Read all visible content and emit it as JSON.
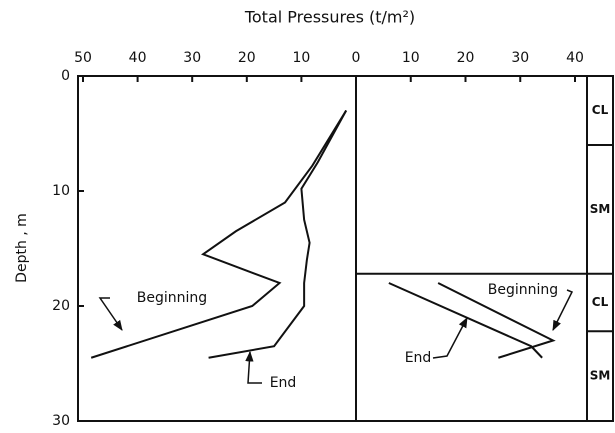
{
  "chart_data": {
    "type": "line",
    "title": "Total Pressures (t/m²)",
    "y_label": "Depth , m",
    "ylim": [
      0,
      30
    ],
    "yticks": [
      0,
      10,
      20,
      30
    ],
    "panels": [
      {
        "xlim": [
          50,
          0
        ],
        "xticks": [
          50,
          40,
          30,
          20,
          10,
          0
        ],
        "series": [
          {
            "name": "Beginning",
            "color": "#111111",
            "x": [
              1.8,
              8,
              13,
              22,
              28,
              14,
              19,
              48.5
            ],
            "values": [
              3,
              7.8,
              11,
              13.5,
              15.5,
              18,
              20,
              24.5
            ]
          },
          {
            "name": "End",
            "color": "#111111",
            "x": [
              1.8,
              7,
              10,
              9.5,
              8.5,
              9,
              9.5,
              9.5,
              15,
              27
            ],
            "values": [
              3,
              7.5,
              9.8,
              12.5,
              14.5,
              16,
              18,
              20,
              23.5,
              24.5
            ]
          }
        ]
      },
      {
        "xlim": [
          0,
          40
        ],
        "xticks": [
          10,
          20,
          30,
          40
        ],
        "series": [
          {
            "name": "Beginning",
            "color": "#111111",
            "x": [
              15,
              36,
              26
            ],
            "values": [
              18,
              23,
              24.5
            ]
          },
          {
            "name": "End",
            "color": "#111111",
            "x": [
              6,
              32,
              34
            ],
            "values": [
              18,
              23.5,
              24.5
            ]
          }
        ]
      }
    ],
    "layers": [
      {
        "label": "CL",
        "top": 0,
        "bottom": 6
      },
      {
        "label": "SM",
        "top": 6,
        "bottom": 17.2
      },
      {
        "label": "CL",
        "top": 17.2,
        "bottom": 22.2
      },
      {
        "label": "SM",
        "top": 22.2,
        "bottom": 30
      }
    ]
  }
}
